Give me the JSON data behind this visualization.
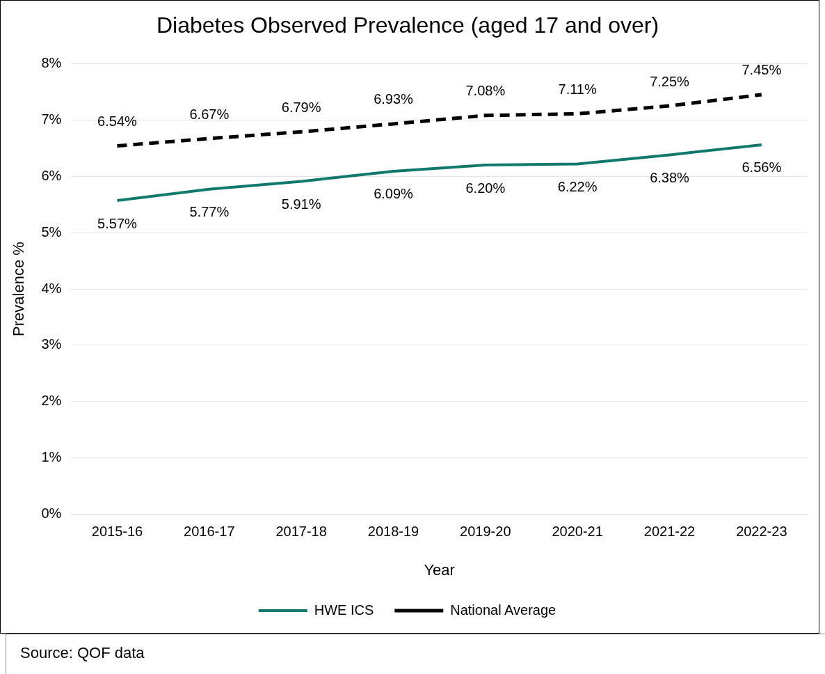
{
  "chart_data": {
    "type": "line",
    "title": "Diabetes Observed Prevalence (aged 17 and over)",
    "xlabel": "Year",
    "ylabel": "Prevalence %",
    "categories": [
      "2015-16",
      "2016-17",
      "2017-18",
      "2018-19",
      "2019-20",
      "2020-21",
      "2021-22",
      "2022-23"
    ],
    "series": [
      {
        "name": "HWE ICS",
        "color": "#0f7a6b",
        "line_style": "solid",
        "values": [
          5.57,
          5.77,
          5.91,
          6.09,
          6.2,
          6.22,
          6.38,
          6.56
        ],
        "value_labels": [
          "5.57%",
          "5.77%",
          "5.91%",
          "6.09%",
          "6.20%",
          "6.22%",
          "6.38%",
          "6.56%"
        ]
      },
      {
        "name": "National Average",
        "color": "#000000",
        "line_style": "dashed",
        "values": [
          6.54,
          6.67,
          6.79,
          6.93,
          7.08,
          7.11,
          7.25,
          7.45
        ],
        "value_labels": [
          "6.54%",
          "6.67%",
          "6.79%",
          "6.93%",
          "7.08%",
          "7.11%",
          "7.25%",
          "7.45%"
        ]
      }
    ],
    "ylim": [
      0,
      8
    ],
    "yticks": [
      {
        "value": 0,
        "label": "0%"
      },
      {
        "value": 1,
        "label": "1%"
      },
      {
        "value": 2,
        "label": "2%"
      },
      {
        "value": 3,
        "label": "3%"
      },
      {
        "value": 4,
        "label": "4%"
      },
      {
        "value": 5,
        "label": "5%"
      },
      {
        "value": 6,
        "label": "6%"
      },
      {
        "value": 7,
        "label": "7%"
      },
      {
        "value": 8,
        "label": "8%"
      }
    ],
    "grid": "y",
    "legend": "bottom",
    "marker": "none",
    "annotations": [
      "Source: QOF data"
    ]
  }
}
